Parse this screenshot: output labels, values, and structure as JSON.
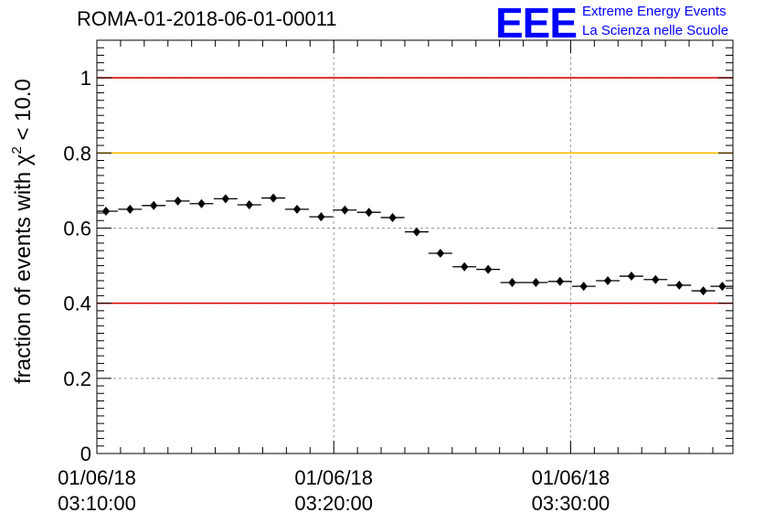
{
  "chart_data": {
    "type": "scatter",
    "title": "ROMA-01-2018-06-01-00011",
    "ylabel": "fraction of events with χ² < 10.0",
    "ylabel_text": "fraction of events with ",
    "ylabel_symbol": "χ",
    "ylabel_sup": "2",
    "ylabel_tail": " < 10.0",
    "xlabel": "",
    "xlim": [
      "01/06/18 03:10:00",
      "01/06/18 03:36:51"
    ],
    "ylim": [
      0,
      1.1
    ],
    "grid": true,
    "x_tick_labels": [
      {
        "date": "01/06/18",
        "time": "03:10:00"
      },
      {
        "date": "01/06/18",
        "time": "03:20:00"
      },
      {
        "date": "01/06/18",
        "time": "03:30:00"
      }
    ],
    "y_tick_labels": [
      "0",
      "0.2",
      "0.4",
      "0.6",
      "0.8",
      "1"
    ],
    "y_ticks": [
      0,
      0.2,
      0.4,
      0.6,
      0.8,
      1.0
    ],
    "reference_lines": [
      {
        "y": 1.0,
        "color": "#e00000"
      },
      {
        "y": 0.8,
        "color": "#ffbf00"
      },
      {
        "y": 0.4,
        "color": "#e00000"
      }
    ],
    "series": [
      {
        "marker_color": "#000000",
        "x": [
          "03:10:23",
          "03:11:24",
          "03:12:24",
          "03:13:25",
          "03:14:25",
          "03:15:26",
          "03:16:26",
          "03:17:27",
          "03:18:27",
          "03:19:28",
          "03:20:28",
          "03:21:29",
          "03:22:29",
          "03:23:30",
          "03:24:30",
          "03:25:31",
          "03:26:31",
          "03:27:32",
          "03:28:32",
          "03:29:33",
          "03:30:33",
          "03:31:34",
          "03:32:34",
          "03:33:35",
          "03:34:35",
          "03:35:36",
          "03:36:24"
        ],
        "y": [
          0.645,
          0.65,
          0.66,
          0.672,
          0.665,
          0.678,
          0.662,
          0.68,
          0.65,
          0.63,
          0.648,
          0.642,
          0.628,
          0.59,
          0.533,
          0.497,
          0.49,
          0.455,
          0.455,
          0.458,
          0.445,
          0.46,
          0.472,
          0.463,
          0.448,
          0.433,
          0.445
        ]
      }
    ]
  },
  "logo": {
    "mark": "EEE",
    "line1": "Extreme Energy Events",
    "line2": "La Scienza nelle Scuole",
    "color": "#0000ff"
  }
}
